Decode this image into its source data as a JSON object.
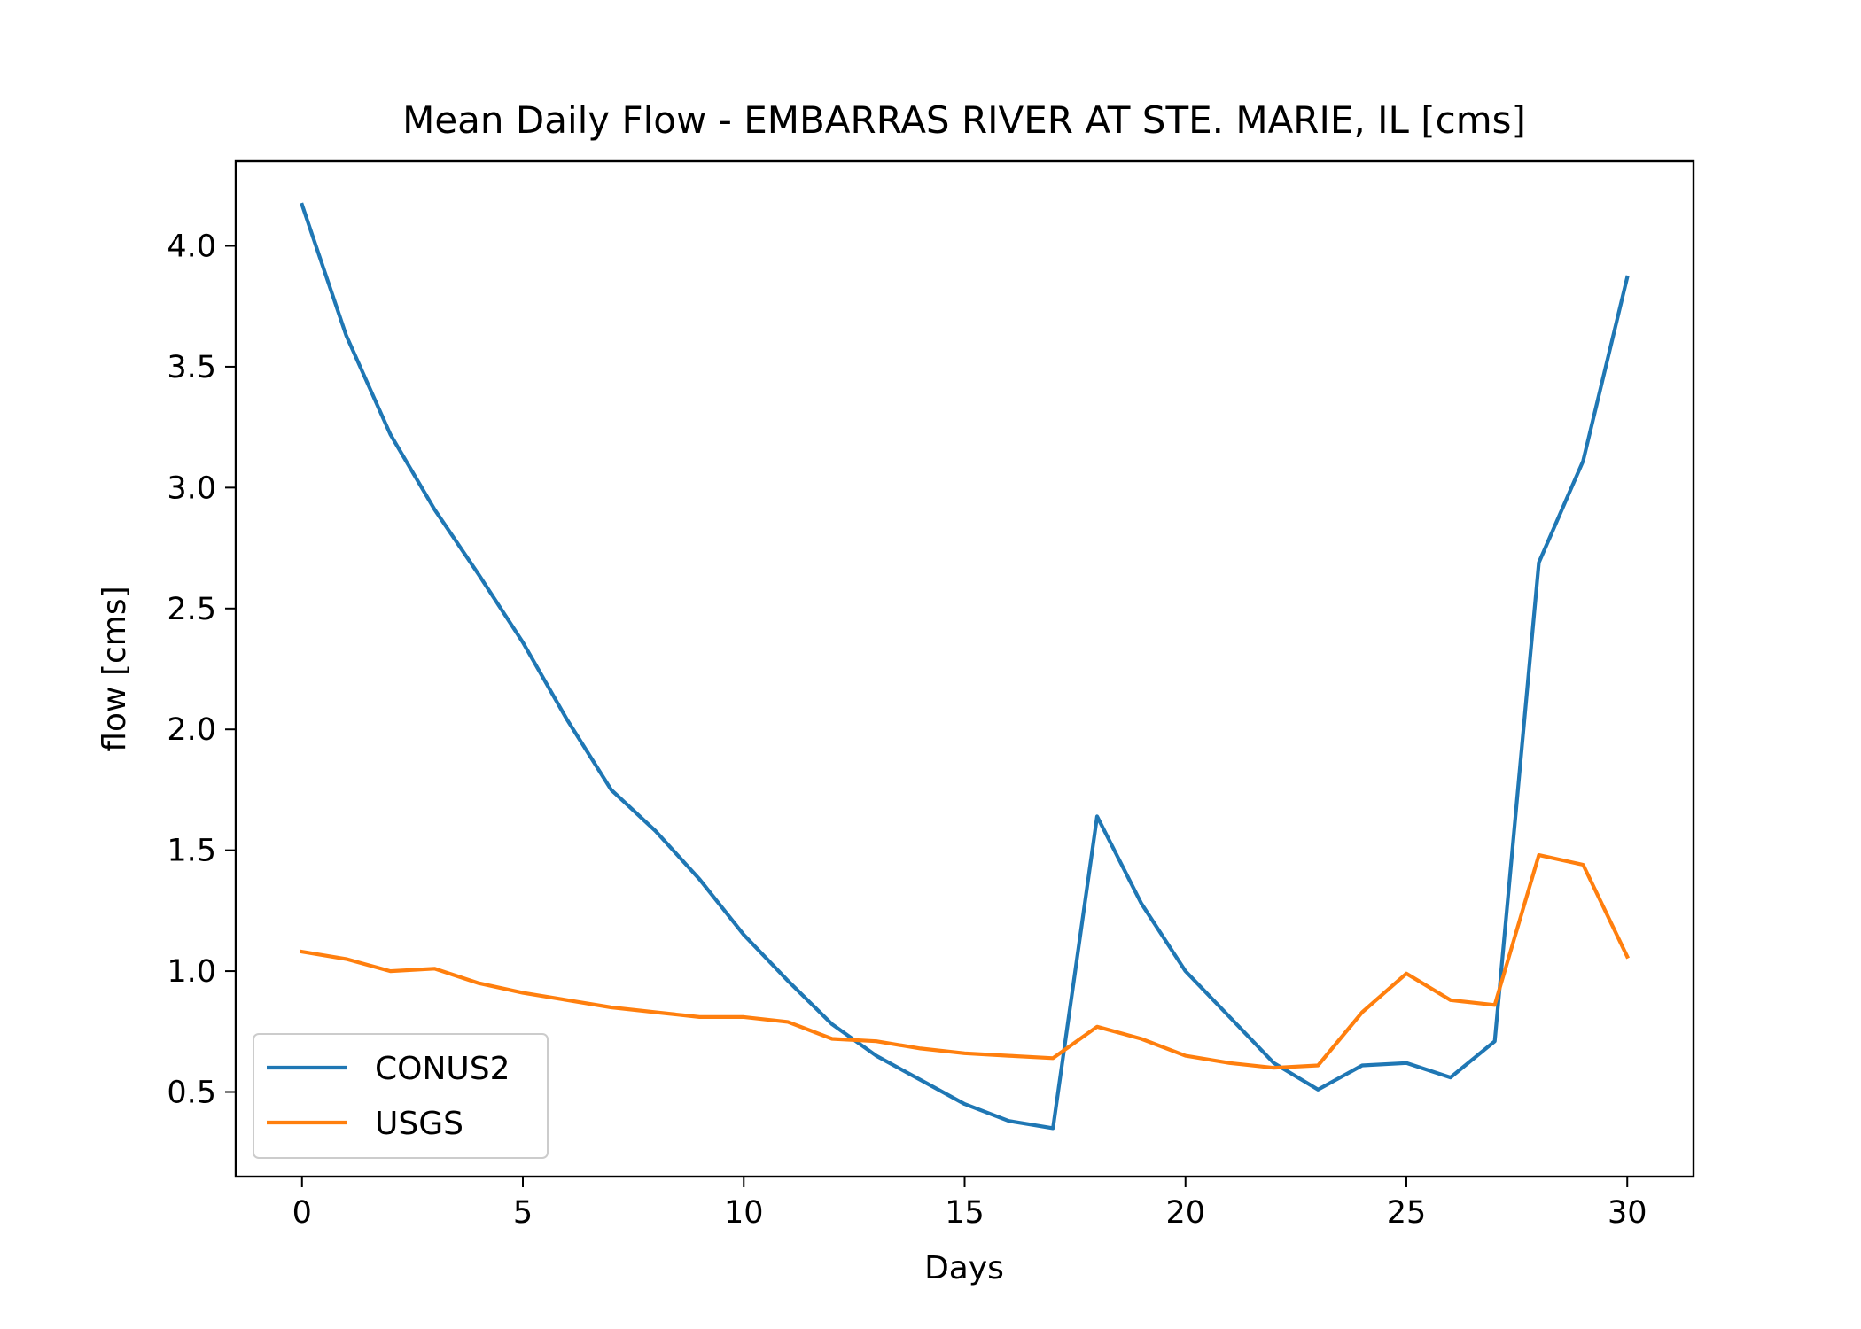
{
  "chart_data": {
    "type": "line",
    "title": "Mean Daily Flow - EMBARRAS RIVER AT STE. MARIE, IL [cms]",
    "xlabel": "Days",
    "ylabel": "flow [cms]",
    "xlim": [
      -1.5,
      31.5
    ],
    "ylim": [
      0.15,
      4.35
    ],
    "xticks": [
      0,
      5,
      10,
      15,
      20,
      25,
      30
    ],
    "xtick_labels": [
      "0",
      "5",
      "10",
      "15",
      "20",
      "25",
      "30"
    ],
    "yticks": [
      0.5,
      1.0,
      1.5,
      2.0,
      2.5,
      3.0,
      3.5,
      4.0
    ],
    "ytick_labels": [
      "0.5",
      "1.0",
      "1.5",
      "2.0",
      "2.5",
      "3.0",
      "3.5",
      "4.0"
    ],
    "grid": false,
    "legend_position": "lower-left",
    "x": [
      0,
      1,
      2,
      3,
      4,
      5,
      6,
      7,
      8,
      9,
      10,
      11,
      12,
      13,
      14,
      15,
      16,
      17,
      18,
      19,
      20,
      21,
      22,
      23,
      24,
      25,
      26,
      27,
      28,
      29,
      30
    ],
    "series": [
      {
        "name": "CONUS2",
        "color": "#1f77b4",
        "values": [
          4.17,
          3.63,
          3.22,
          2.91,
          2.64,
          2.36,
          2.04,
          1.75,
          1.58,
          1.38,
          1.15,
          0.96,
          0.78,
          0.65,
          0.55,
          0.45,
          0.38,
          0.35,
          1.64,
          1.28,
          1.0,
          0.81,
          0.62,
          0.51,
          0.61,
          0.62,
          0.56,
          0.71,
          2.69,
          3.11,
          3.87
        ]
      },
      {
        "name": "USGS",
        "color": "#ff7f0e",
        "values": [
          1.08,
          1.05,
          1.0,
          1.01,
          0.95,
          0.91,
          0.88,
          0.85,
          0.83,
          0.81,
          0.81,
          0.79,
          0.72,
          0.71,
          0.68,
          0.66,
          0.65,
          0.64,
          0.77,
          0.72,
          0.65,
          0.62,
          0.6,
          0.61,
          0.83,
          0.99,
          0.88,
          0.86,
          1.48,
          1.44,
          1.06
        ]
      }
    ]
  }
}
